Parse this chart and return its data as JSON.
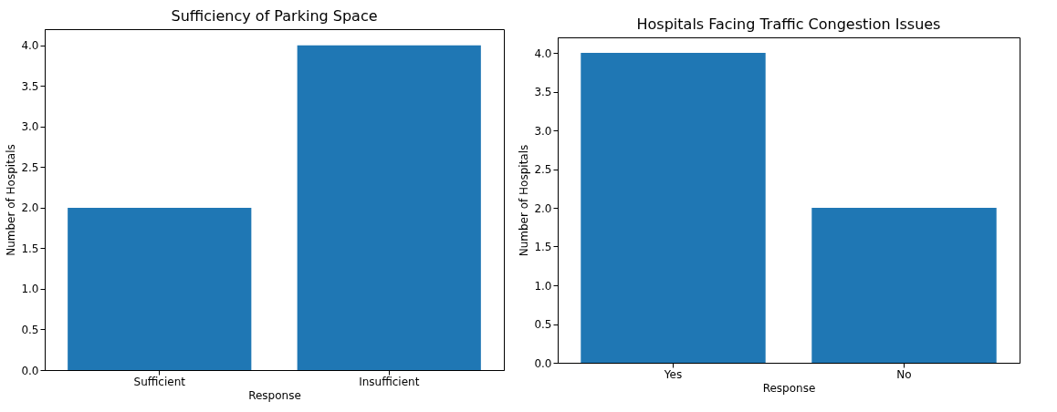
{
  "chart_data": [
    {
      "type": "bar",
      "title": "Sufficiency of Parking Space",
      "xlabel": "Response",
      "ylabel": "Number of Hospitals",
      "categories": [
        "Sufficient",
        "Insufficient"
      ],
      "values": [
        2,
        4
      ],
      "color": "#1f77b4",
      "ylim": [
        0,
        4.2
      ],
      "yticks": [
        {
          "value": 0,
          "label": "0.0"
        },
        {
          "value": 0.5,
          "label": "0.5"
        },
        {
          "value": 1,
          "label": "1.0"
        },
        {
          "value": 1.5,
          "label": "1.5"
        },
        {
          "value": 2,
          "label": "2.0"
        },
        {
          "value": 2.5,
          "label": "2.5"
        },
        {
          "value": 3,
          "label": "3.0"
        },
        {
          "value": 3.5,
          "label": "3.5"
        },
        {
          "value": 4,
          "label": "4.0"
        }
      ]
    },
    {
      "type": "bar",
      "title": "Hospitals Facing Traffic Congestion Issues",
      "xlabel": "Response",
      "ylabel": "Number of Hospitals",
      "categories": [
        "Yes",
        "No"
      ],
      "values": [
        4,
        2
      ],
      "color": "#1f77b4",
      "ylim": [
        0,
        4.2
      ],
      "yticks": [
        {
          "value": 0,
          "label": "0.0"
        },
        {
          "value": 0.5,
          "label": "0.5"
        },
        {
          "value": 1,
          "label": "1.0"
        },
        {
          "value": 1.5,
          "label": "1.5"
        },
        {
          "value": 2,
          "label": "2.0"
        },
        {
          "value": 2.5,
          "label": "2.5"
        },
        {
          "value": 3,
          "label": "3.0"
        },
        {
          "value": 3.5,
          "label": "3.5"
        },
        {
          "value": 4,
          "label": "4.0"
        }
      ]
    }
  ]
}
